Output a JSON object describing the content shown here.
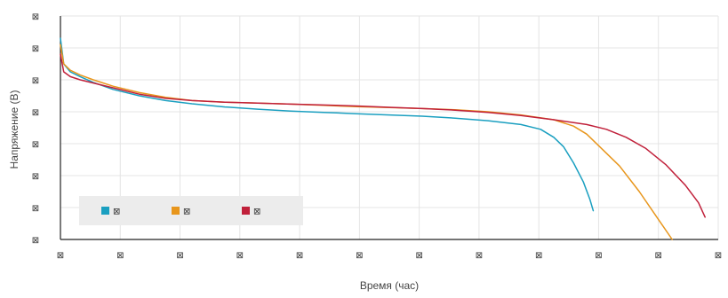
{
  "chart_data": {
    "type": "line",
    "xlabel": "Время (час)",
    "ylabel": "Напряжение (В)",
    "x_ticks": [
      "⊠",
      "⊠",
      "⊠",
      "⊠",
      "⊠",
      "⊠",
      "⊠",
      "⊠",
      "⊠",
      "⊠",
      "⊠",
      "⊠"
    ],
    "y_ticks": [
      "⊠",
      "⊠",
      "⊠",
      "⊠",
      "⊠",
      "⊠",
      "⊠",
      "⊠"
    ],
    "xlim": [
      0,
      10
    ],
    "ylim": [
      0,
      7
    ],
    "grid": true,
    "legend_position": "bottom-left",
    "series": [
      {
        "name": "⊠",
        "color": "#1a9fc0",
        "x": [
          0,
          0.05,
          0.15,
          0.3,
          0.5,
          0.8,
          1.2,
          1.6,
          2,
          2.5,
          3,
          3.5,
          4,
          4.5,
          5,
          5.5,
          6,
          6.5,
          7,
          7.3,
          7.5,
          7.65,
          7.8,
          7.95,
          8.05,
          8.1
        ],
        "y": [
          6.3,
          5.5,
          5.25,
          5.1,
          4.92,
          4.7,
          4.5,
          4.35,
          4.25,
          4.15,
          4.08,
          4.02,
          3.98,
          3.94,
          3.9,
          3.86,
          3.8,
          3.72,
          3.6,
          3.45,
          3.2,
          2.9,
          2.4,
          1.8,
          1.25,
          0.9
        ]
      },
      {
        "name": "⊠",
        "color": "#e8961c",
        "x": [
          0,
          0.05,
          0.15,
          0.3,
          0.5,
          0.8,
          1.2,
          1.6,
          2,
          2.5,
          3,
          3.5,
          4,
          4.5,
          5,
          5.5,
          6,
          6.5,
          7,
          7.5,
          7.8,
          8.0,
          8.2,
          8.5,
          8.8,
          9.1,
          9.3
        ],
        "y": [
          6.1,
          5.5,
          5.3,
          5.15,
          5.0,
          4.8,
          4.6,
          4.45,
          4.35,
          4.3,
          4.27,
          4.24,
          4.2,
          4.16,
          4.13,
          4.1,
          4.06,
          4.0,
          3.9,
          3.75,
          3.55,
          3.3,
          2.9,
          2.3,
          1.5,
          0.6,
          0.0
        ]
      },
      {
        "name": "⊠",
        "color": "#c0203a",
        "x": [
          0,
          0.05,
          0.15,
          0.3,
          0.5,
          0.8,
          1.2,
          1.6,
          2,
          2.5,
          3,
          3.5,
          4,
          4.5,
          5,
          5.5,
          6,
          6.5,
          7,
          7.5,
          8,
          8.3,
          8.6,
          8.9,
          9.2,
          9.5,
          9.7,
          9.8
        ],
        "y": [
          5.8,
          5.25,
          5.1,
          5.0,
          4.9,
          4.75,
          4.55,
          4.42,
          4.35,
          4.3,
          4.27,
          4.24,
          4.21,
          4.18,
          4.14,
          4.1,
          4.05,
          3.98,
          3.88,
          3.75,
          3.6,
          3.45,
          3.2,
          2.85,
          2.35,
          1.7,
          1.15,
          0.7
        ]
      }
    ]
  }
}
